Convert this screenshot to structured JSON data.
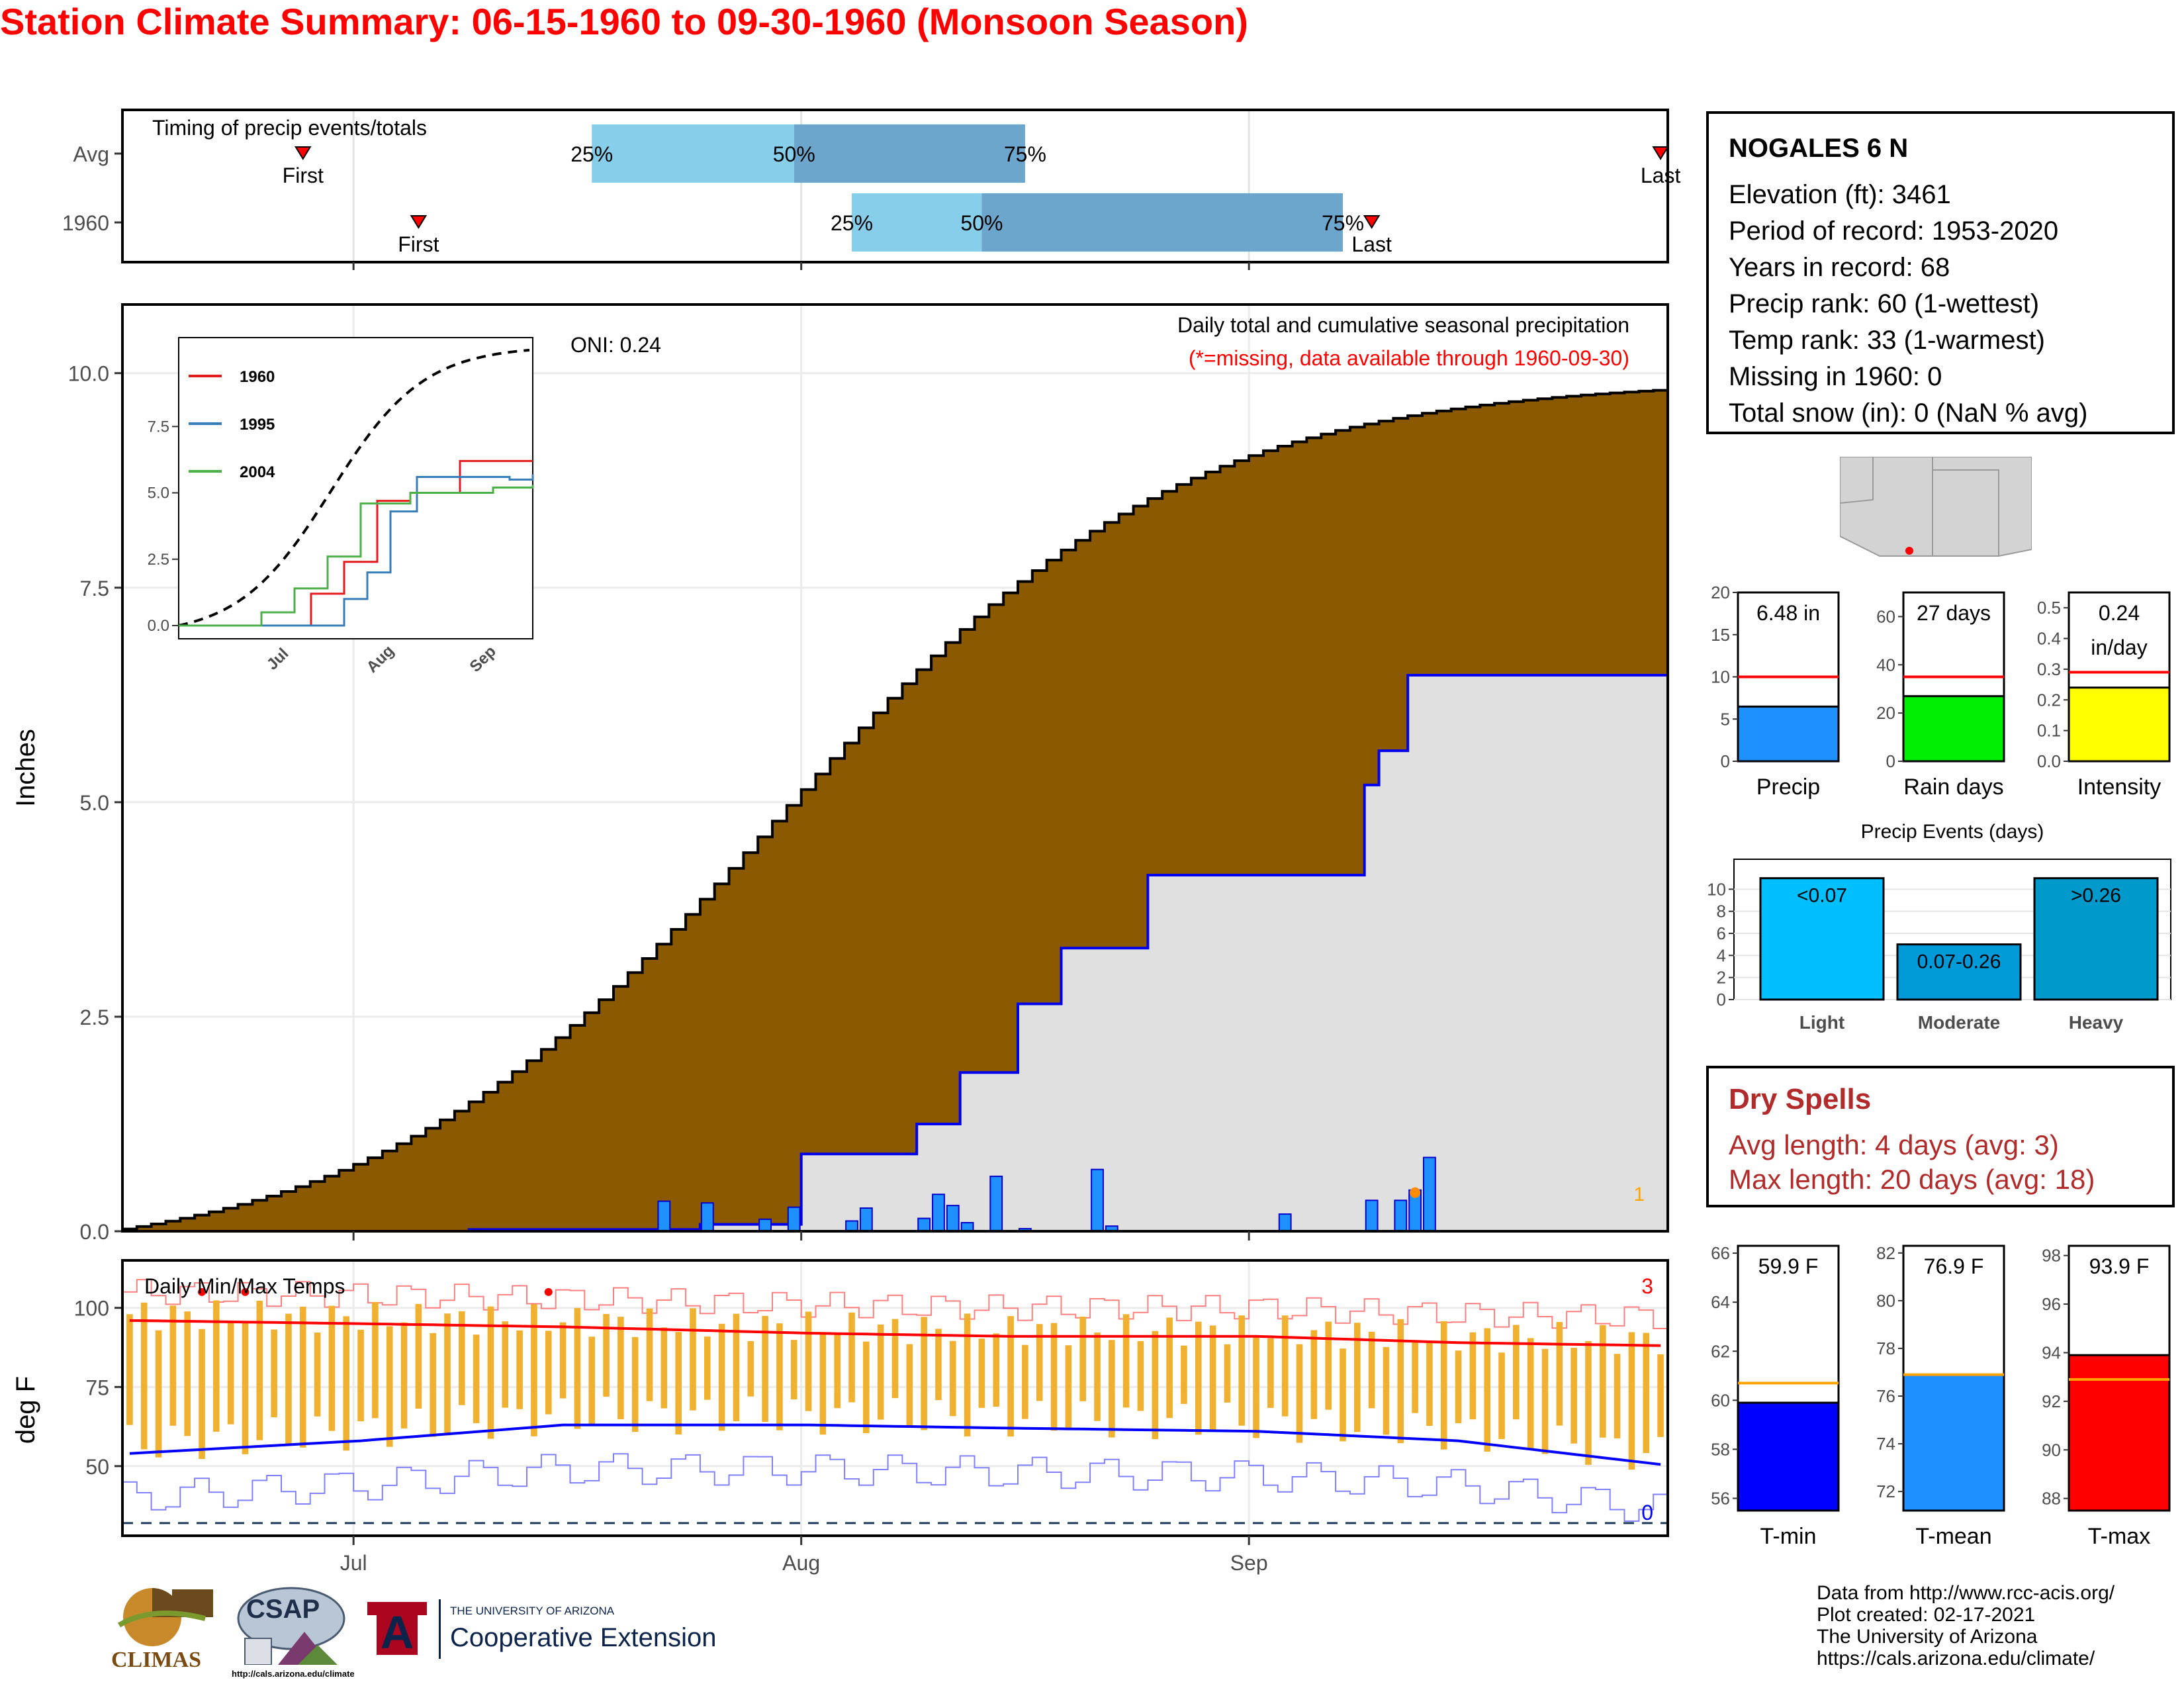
{
  "title": "Station Climate Summary: 06-15-1960 to 09-30-1960 (Monsoon Season)",
  "colors": {
    "title": "#ff0000",
    "cumulative_fill": "#8b5a00",
    "precip_bars": "#1e90ff",
    "temp_bars": "#f0b030",
    "tmax_line": "#ff0000",
    "tmin_line": "#0000ff",
    "percentile_light": "#87ceeb",
    "percentile_dark": "#6ca6cd"
  },
  "timing": {
    "label": "Timing of precip events/totals",
    "rows": [
      {
        "label": "Avg",
        "first_label": "First",
        "last_label": "Last",
        "p25": "25%",
        "p50": "50%",
        "p75": "75%",
        "first_date": "1960-06-27",
        "p25_date": "1960-07-17",
        "p50_date": "1960-07-31",
        "p75_date": "1960-08-16",
        "last_date": "1960-09-29"
      },
      {
        "label": "1960",
        "first_label": "First",
        "last_label": "Last",
        "p25": "25%",
        "p50": "50%",
        "p75": "75%",
        "first_date": "1960-07-05",
        "p25_date": "1960-08-04",
        "p50_date": "1960-08-13",
        "p75_date": "1960-09-07",
        "last_date": "1960-09-09"
      }
    ]
  },
  "main_chart": {
    "ylabel": "Inches",
    "oni": "ONI: 0.24",
    "caption": "Daily total and cumulative seasonal precipitation",
    "missing_note": "(*=missing, data available through 1960-09-30)",
    "missing_count": "1",
    "yticks": [
      "0.0",
      "2.5",
      "5.0",
      "7.5",
      "10.0"
    ],
    "xticks": [
      "Jul",
      "Aug",
      "Sep"
    ]
  },
  "inset": {
    "legend": [
      "1960",
      "1995",
      "2004"
    ],
    "legend_colors": [
      "#e41a1c",
      "#377eb8",
      "#4daf4a"
    ],
    "yticks": [
      "0.0",
      "2.5",
      "5.0",
      "7.5"
    ],
    "xticks": [
      "Jul",
      "Aug",
      "Sep"
    ]
  },
  "temp_chart": {
    "ylabel": "deg F",
    "label": "Daily Min/Max Temps",
    "count_hi": "3",
    "count_lo": "0",
    "yticks": [
      "50",
      "75",
      "100"
    ]
  },
  "station": {
    "name": "NOGALES 6 N",
    "lines": [
      "Elevation (ft): 3461",
      "Period of record: 1953-2020",
      "Years in record: 68",
      "Precip rank: 60 (1-wettest)",
      "Temp rank: 33 (1-warmest)",
      "Missing in 1960: 0",
      "Total snow (in): 0 (NaN % avg)"
    ]
  },
  "mini_precip": [
    {
      "label": "Precip",
      "value_text": "6.48 in",
      "yticks": [
        "0",
        "5",
        "10",
        "15",
        "20"
      ]
    },
    {
      "label": "Rain days",
      "value_text": "27 days",
      "yticks": [
        "0",
        "20",
        "40",
        "60"
      ]
    },
    {
      "label": "Intensity",
      "value_text": "0.24",
      "value_text2": "in/day",
      "yticks": [
        "0.0",
        "0.1",
        "0.2",
        "0.3",
        "0.4",
        "0.5"
      ]
    }
  ],
  "events": {
    "title": "Precip Events (days)",
    "yticks": [
      "0",
      "2",
      "4",
      "6",
      "8",
      "10"
    ],
    "bars": [
      {
        "label": "Light",
        "range": "<0.07"
      },
      {
        "label": "Moderate",
        "range": "0.07-0.26"
      },
      {
        "label": "Heavy",
        "range": ">0.26"
      }
    ]
  },
  "dry_spells": {
    "title": "Dry Spells",
    "avg": "Avg length: 4 days (avg: 3)",
    "max": "Max length: 20 days (avg: 18)"
  },
  "mini_temp": [
    {
      "label": "T-min",
      "value_text": "59.9 F",
      "yticks": [
        "56",
        "58",
        "60",
        "62",
        "64",
        "66"
      ]
    },
    {
      "label": "T-mean",
      "value_text": "76.9 F",
      "yticks": [
        "72",
        "74",
        "76",
        "78",
        "80",
        "82"
      ]
    },
    {
      "label": "T-max",
      "value_text": "93.9 F",
      "yticks": [
        "88",
        "90",
        "92",
        "94",
        "96",
        "98"
      ]
    }
  ],
  "footer": [
    "Data from http://www.rcc-acis.org/",
    "Plot created: 02-17-2021",
    "The University of Arizona",
    "https://cals.arizona.edu/climate/"
  ],
  "logos": {
    "climas": "CLIMAS",
    "csap": "CSAP",
    "csap_url": "http://cals.arizona.edu/climate",
    "ua_top": "THE UNIVERSITY OF ARIZONA",
    "ua_main": "Cooperative Extension"
  },
  "chart_data": [
    {
      "type": "area",
      "title": "Daily total and cumulative seasonal precipitation",
      "ylabel": "Inches",
      "ylim": [
        0,
        10.8
      ],
      "x_range": [
        "1960-06-15",
        "1960-09-30"
      ],
      "series": [
        {
          "name": "1960",
          "x": [
            "1960-06-15",
            "1960-07-09",
            "1960-07-25",
            "1960-08-01",
            "1960-08-09",
            "1960-08-12",
            "1960-08-14",
            "1960-08-16",
            "1960-08-19",
            "1960-08-25",
            "1960-09-06",
            "1960-09-09",
            "1960-09-10",
            "1960-09-12",
            "1960-09-30"
          ],
          "values": [
            0.0,
            0.02,
            0.08,
            0.9,
            1.25,
            1.85,
            1.85,
            2.65,
            3.3,
            4.15,
            4.15,
            5.2,
            5.6,
            6.48,
            6.48
          ]
        }
      ],
      "daily_precip": {
        "x": [
          "1960-07-22",
          "1960-07-25",
          "1960-07-29",
          "1960-07-31",
          "1960-08-04",
          "1960-08-05",
          "1960-08-09",
          "1960-08-10",
          "1960-08-11",
          "1960-08-12",
          "1960-08-14",
          "1960-08-16",
          "1960-08-21",
          "1960-08-22",
          "1960-09-03",
          "1960-09-09",
          "1960-09-11",
          "1960-09-12",
          "1960-09-13"
        ],
        "values": [
          0.35,
          0.33,
          0.14,
          0.28,
          0.12,
          0.27,
          0.15,
          0.43,
          0.3,
          0.1,
          0.64,
          0.03,
          0.72,
          0.06,
          0.2,
          0.36,
          0.36,
          0.48,
          0.86
        ]
      },
      "avg_cumulative_end": 9.8
    },
    {
      "type": "bar",
      "title": "Precip",
      "categories": [
        "Precip",
        "Rain days",
        "Intensity"
      ],
      "values": [
        6.48,
        27,
        0.24
      ],
      "averages": [
        10,
        35,
        0.29
      ]
    },
    {
      "type": "bar",
      "title": "Precip Events (days)",
      "categories": [
        "Light",
        "Moderate",
        "Heavy"
      ],
      "values": [
        11,
        5,
        11
      ],
      "ylim": [
        0,
        12
      ]
    },
    {
      "type": "bar",
      "title": "Temperatures",
      "categories": [
        "T-min",
        "T-mean",
        "T-max"
      ],
      "values": [
        59.9,
        76.9,
        93.9
      ],
      "averages": [
        60.7,
        76.9,
        92.9
      ]
    },
    {
      "type": "line",
      "title": "Daily Min/Max Temps",
      "ylabel": "deg F",
      "ylim": [
        28,
        115
      ],
      "series": [
        {
          "name": "Tmax avg",
          "x": [
            "06-15",
            "07-01",
            "07-15",
            "08-01",
            "08-15",
            "09-01",
            "09-15",
            "09-30"
          ],
          "values": [
            96,
            95,
            94,
            92,
            91,
            91,
            89,
            88
          ]
        },
        {
          "name": "Tmin avg",
          "x": [
            "06-15",
            "07-01",
            "07-15",
            "08-01",
            "08-15",
            "09-01",
            "09-15",
            "09-30"
          ],
          "values": [
            54,
            58,
            63,
            63,
            62,
            61,
            58,
            50
          ]
        }
      ]
    }
  ]
}
